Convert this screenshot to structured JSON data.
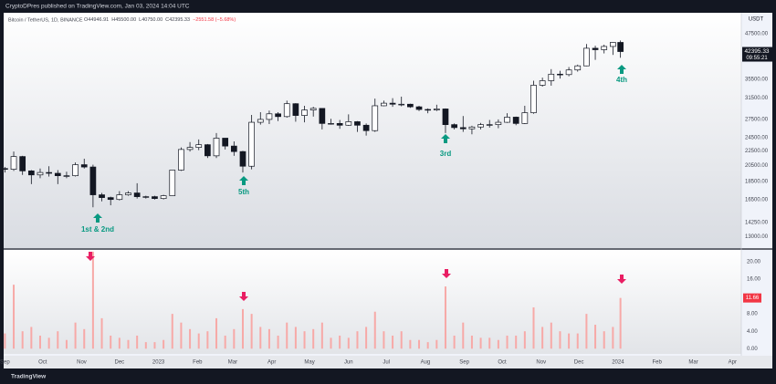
{
  "header": {
    "published": "CryptoDPres published on TradingView.com, Jan 03, 2024 14:04 UTC",
    "symbol": "Bitcoin / TetherUS, 1D, BINANCE",
    "ohlc": [
      "O44946.91",
      "H45500.00",
      "L40750.00",
      "C42395.33",
      "−2551.58 (−5.68%)"
    ]
  },
  "currency": "USDT",
  "countdown": "09:55:21",
  "footer": "TradingView",
  "chart_data": [
    {
      "type": "candlestick",
      "log_scale": true,
      "grid": false,
      "up_color": "#ffffff",
      "down_color": "#131722",
      "xlim": [
        -1,
        585
      ],
      "ylim": [
        12100,
        54300
      ],
      "yticks": [
        {
          "value": 47500,
          "label": "47500.00"
        },
        {
          "value": 35500,
          "label": "35500.00"
        },
        {
          "value": 31500,
          "label": "31500.00"
        },
        {
          "value": 27500,
          "label": "27500.00"
        },
        {
          "value": 24500,
          "label": "24500.00"
        },
        {
          "value": 22500,
          "label": "22500.00"
        },
        {
          "value": 20500,
          "label": "20500.00"
        },
        {
          "value": 18500,
          "label": "18500.00"
        },
        {
          "value": 16500,
          "label": "16500.00"
        },
        {
          "value": 14250,
          "label": "14250.00"
        },
        {
          "value": 13000,
          "label": "13000.00"
        }
      ],
      "x": [
        0,
        7,
        14,
        21,
        28,
        35,
        42,
        49,
        56,
        63,
        70,
        77,
        84,
        91,
        98,
        105,
        112,
        119,
        126,
        133,
        140,
        147,
        154,
        161,
        168,
        175,
        182,
        189,
        196,
        203,
        210,
        217,
        224,
        231,
        238,
        245,
        252,
        259,
        266,
        273,
        280,
        287,
        294,
        301,
        308,
        315,
        322,
        329,
        336,
        343,
        350,
        357,
        364,
        371,
        378,
        385,
        392,
        399,
        406,
        413,
        420,
        427,
        434,
        441,
        448,
        455,
        462,
        469,
        476,
        483,
        489
      ],
      "open": [
        20100,
        20000,
        21700,
        19800,
        19300,
        19600,
        19500,
        19200,
        19200,
        20600,
        20300,
        17000,
        16700,
        16500,
        17000,
        17200,
        16800,
        16800,
        16600,
        16900,
        19900,
        22700,
        23000,
        23400,
        21800,
        24400,
        23200,
        22400,
        20400,
        27000,
        27500,
        28500,
        28000,
        30400,
        28200,
        29200,
        29500,
        26800,
        26800,
        26500,
        27100,
        26500,
        25600,
        30000,
        30500,
        30300,
        30300,
        29800,
        29300,
        29200,
        29400,
        26600,
        26100,
        25900,
        26200,
        26600,
        26600,
        27000,
        27900,
        26800,
        28700,
        34200,
        35200,
        36700,
        36600,
        37700,
        38700,
        43300,
        42900,
        43800,
        44946.91
      ],
      "high": [
        20300,
        22400,
        21800,
        19900,
        20100,
        20400,
        19900,
        19700,
        20900,
        21400,
        20600,
        17200,
        16800,
        17400,
        17400,
        18300,
        16900,
        16900,
        17000,
        19900,
        23000,
        23800,
        24200,
        23500,
        25200,
        24400,
        23900,
        22500,
        28300,
        28800,
        29100,
        28800,
        31000,
        30500,
        30000,
        29800,
        29500,
        27600,
        27400,
        28400,
        27200,
        26800,
        31400,
        31000,
        31500,
        31800,
        30400,
        30000,
        29500,
        30200,
        29500,
        26800,
        28100,
        26400,
        26900,
        27400,
        27500,
        28600,
        28000,
        30000,
        35200,
        35900,
        37900,
        37500,
        38400,
        39000,
        44500,
        44000,
        44300,
        45000,
        45500
      ],
      "low": [
        19600,
        19800,
        19300,
        18200,
        18900,
        19100,
        18200,
        18900,
        19100,
        20100,
        15700,
        16300,
        15900,
        16400,
        16900,
        16600,
        16600,
        16500,
        16500,
        16900,
        19800,
        22400,
        22600,
        21500,
        21500,
        22700,
        21800,
        19600,
        20000,
        26600,
        26700,
        27200,
        27800,
        27100,
        27000,
        28000,
        25800,
        26600,
        25900,
        26400,
        25400,
        24800,
        25400,
        29900,
        29800,
        29900,
        29600,
        29000,
        28600,
        29000,
        25200,
        25800,
        25400,
        25000,
        25800,
        26100,
        26000,
        26900,
        26500,
        26700,
        28500,
        33900,
        34100,
        35700,
        36200,
        37300,
        38600,
        40200,
        41900,
        41500,
        40750
      ],
      "close": [
        20000,
        21700,
        19800,
        19300,
        19600,
        19500,
        19200,
        19200,
        20600,
        20300,
        17000,
        16700,
        16500,
        17000,
        17200,
        16800,
        16800,
        16600,
        16900,
        19900,
        22700,
        23000,
        23400,
        21800,
        24400,
        23200,
        22400,
        20400,
        27000,
        27500,
        28500,
        28000,
        30400,
        28200,
        29200,
        29500,
        26800,
        26800,
        26500,
        27100,
        26500,
        25600,
        30000,
        30500,
        30300,
        30300,
        29800,
        29300,
        29200,
        29400,
        26600,
        26100,
        25900,
        26200,
        26600,
        26600,
        27000,
        27900,
        26800,
        28700,
        34200,
        35200,
        36700,
        36600,
        37700,
        38700,
        43300,
        42900,
        43800,
        44946.91,
        42395.33
      ],
      "annotations": [
        "1st & 2nd",
        "5th",
        "3rd",
        "4th"
      ]
    },
    {
      "type": "bar",
      "color": "#f7a9a7",
      "xlim": [
        -1,
        585
      ],
      "ylim": [
        -1.2,
        22.7
      ],
      "yticks": [
        {
          "value": 20,
          "label": "20.00"
        },
        {
          "value": 16,
          "label": "16.00"
        },
        {
          "value": 8,
          "label": "8.00"
        },
        {
          "value": 4,
          "label": "4.00"
        },
        {
          "value": 0,
          "label": "0.00"
        }
      ],
      "xticks": [
        {
          "value": 0,
          "label": "Sep"
        },
        {
          "value": 30,
          "label": "Oct"
        },
        {
          "value": 61,
          "label": "Nov"
        },
        {
          "value": 91,
          "label": "Dec"
        },
        {
          "value": 122,
          "label": "2023"
        },
        {
          "value": 153,
          "label": "Feb"
        },
        {
          "value": 181,
          "label": "Mar"
        },
        {
          "value": 212,
          "label": "Apr"
        },
        {
          "value": 242,
          "label": "May"
        },
        {
          "value": 273,
          "label": "Jun"
        },
        {
          "value": 303,
          "label": "Jul"
        },
        {
          "value": 334,
          "label": "Aug"
        },
        {
          "value": 365,
          "label": "Sep"
        },
        {
          "value": 395,
          "label": "Oct"
        },
        {
          "value": 426,
          "label": "Nov"
        },
        {
          "value": 456,
          "label": "Dec"
        },
        {
          "value": 487,
          "label": "2024"
        },
        {
          "value": 518,
          "label": "Feb"
        },
        {
          "value": 547,
          "label": "Mar"
        },
        {
          "value": 578,
          "label": "Apr"
        }
      ],
      "x": [
        0,
        7,
        14,
        21,
        28,
        35,
        42,
        49,
        56,
        63,
        70,
        77,
        84,
        91,
        98,
        105,
        112,
        119,
        126,
        133,
        140,
        147,
        154,
        161,
        168,
        175,
        182,
        189,
        196,
        203,
        210,
        217,
        224,
        231,
        238,
        245,
        252,
        259,
        266,
        273,
        280,
        287,
        294,
        301,
        308,
        315,
        322,
        329,
        336,
        343,
        350,
        357,
        364,
        371,
        378,
        385,
        392,
        399,
        406,
        413,
        420,
        427,
        434,
        441,
        448,
        455,
        462,
        469,
        476,
        483,
        489
      ],
      "values": [
        3.5,
        14.7,
        4,
        5,
        3,
        2.5,
        4,
        2,
        6,
        4.5,
        22.3,
        7,
        3,
        2.5,
        2,
        3,
        1.5,
        1.5,
        2,
        8,
        6,
        4.5,
        3.5,
        4,
        7,
        3,
        4.5,
        9.1,
        8,
        5,
        4.5,
        3,
        6,
        5,
        4,
        4.5,
        6,
        2.5,
        3,
        2.5,
        4,
        5,
        8.5,
        4,
        3,
        4,
        2,
        2,
        1.5,
        2,
        14.3,
        3,
        6,
        3,
        2.5,
        2.5,
        2,
        3,
        3,
        4,
        9.5,
        5,
        6,
        4,
        3.5,
        3.5,
        8,
        5.5,
        4,
        5,
        11.66
      ]
    }
  ]
}
